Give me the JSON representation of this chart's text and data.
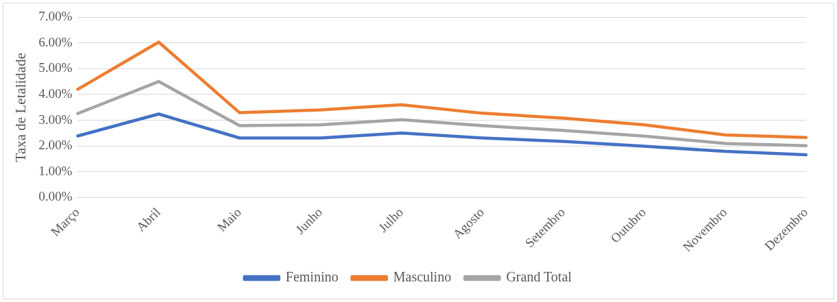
{
  "chart_data": {
    "type": "line",
    "ylabel": "Taxa de Letalidade",
    "categories": [
      "Março",
      "Abril",
      "Maio",
      "Junho",
      "Julho",
      "Agosto",
      "Setembro",
      "Outubro",
      "Novembro",
      "Dezembro"
    ],
    "series": [
      {
        "name": "Feminino",
        "color": "#4472c4",
        "values": [
          2.39,
          3.24,
          2.31,
          2.31,
          2.5,
          2.31,
          2.18,
          1.99,
          1.79,
          1.66
        ]
      },
      {
        "name": "Masculino",
        "color": "#ed7d31",
        "values": [
          4.2,
          6.03,
          3.29,
          3.4,
          3.6,
          3.27,
          3.08,
          2.82,
          2.43,
          2.33
        ]
      },
      {
        "name": "Grand Total",
        "color": "#a5a5a5",
        "values": [
          3.26,
          4.5,
          2.79,
          2.82,
          3.02,
          2.79,
          2.6,
          2.38,
          2.1,
          2.01
        ]
      }
    ],
    "ylim": [
      0,
      7
    ],
    "yticks": [
      {
        "value": 0,
        "label": "0.00%"
      },
      {
        "value": 1,
        "label": "1.00%"
      },
      {
        "value": 2,
        "label": "2.00%"
      },
      {
        "value": 3,
        "label": "3.00%"
      },
      {
        "value": 4,
        "label": "4.00%"
      },
      {
        "value": 5,
        "label": "5.00%"
      },
      {
        "value": 6,
        "label": "6.00%"
      },
      {
        "value": 7,
        "label": "7.00%"
      }
    ],
    "grid": "y",
    "legend": "bottom",
    "marker": "none",
    "line_style": "solid"
  }
}
